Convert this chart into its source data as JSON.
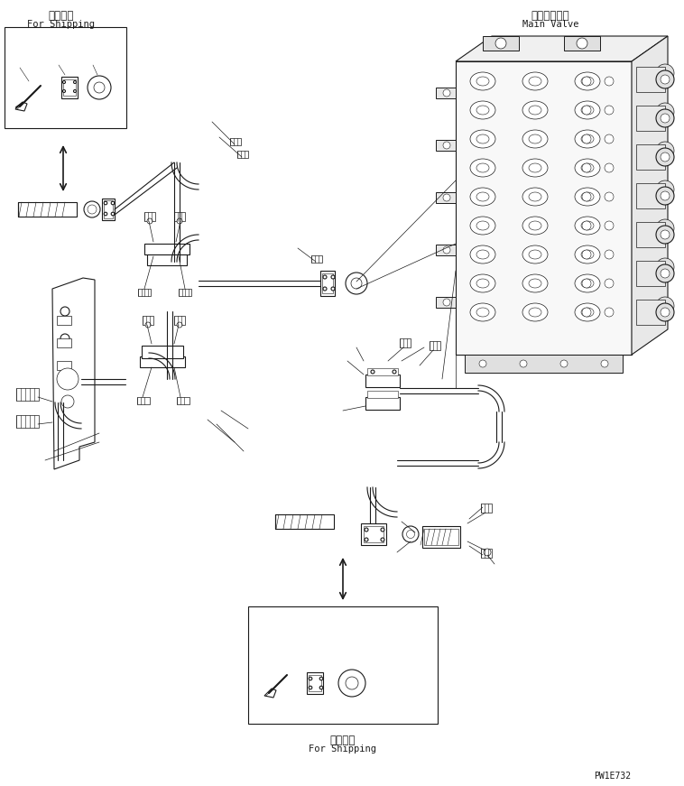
{
  "bg_color": "#ffffff",
  "fig_width": 7.58,
  "fig_height": 8.71,
  "dpi": 100,
  "top_left_label_jp": "運搞部品",
  "top_left_label_en": "For Shipping",
  "top_right_label_jp": "メインバルブ",
  "top_right_label_en": "Main Valve",
  "bottom_center_label_jp": "運搞部品",
  "bottom_center_label_en": "For Shipping",
  "part_id": "PW1E732",
  "line_color": "#1a1a1a",
  "lw": 0.8,
  "lw_thick": 1.5,
  "lw_thin": 0.5,
  "font_size_jp": 8.5,
  "font_size_en": 7.5,
  "font_size_id": 7
}
